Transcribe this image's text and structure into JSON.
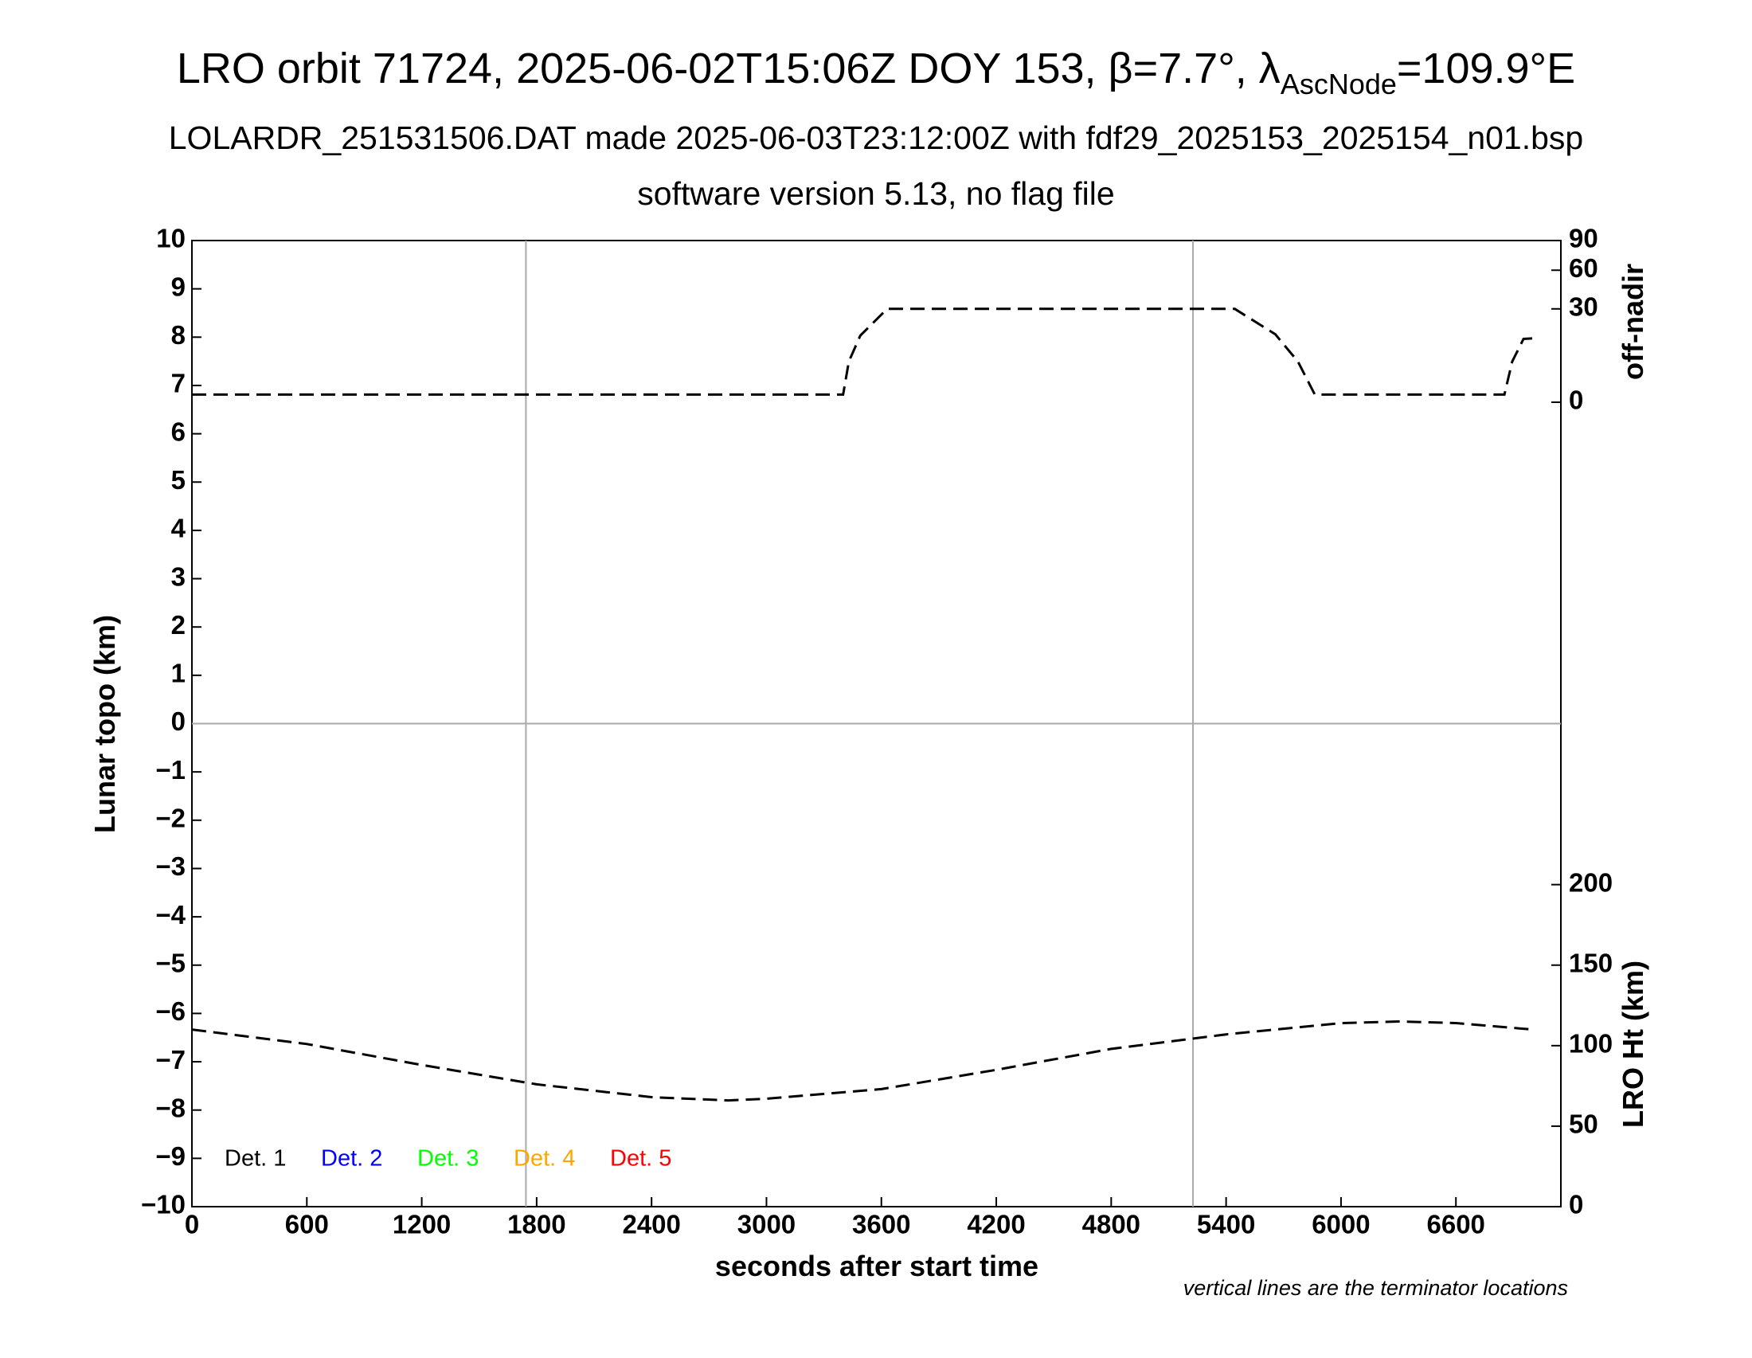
{
  "chart_data": {
    "type": "line",
    "title": {
      "main": "LRO orbit 71724, 2025-06-02T15:06Z DOY 153, β=7.7°, λ",
      "sub": "AscNode",
      "end": "=109.9°E"
    },
    "subtitle": "LOLARDR_251531506.DAT made 2025-06-03T23:12:00Z with fdf29_2025153_2025154_n01.bsp",
    "subtitle2": "software version 5.13, no flag file",
    "xlabel": "seconds after start time",
    "ylabel": "Lunar topo (km)",
    "y2label": "off-nadir",
    "y3label": "LRO Ht (km)",
    "note": "vertical lines are the terminator locations",
    "xlim": [
      0,
      7148
    ],
    "xticks": [
      0,
      600,
      1200,
      1800,
      2400,
      3000,
      3600,
      4200,
      4800,
      5400,
      6000,
      6600
    ],
    "ylim": [
      -10,
      10
    ],
    "yticks": [
      {
        "value": -10,
        "label": "−10"
      },
      {
        "value": -9,
        "label": "−9"
      },
      {
        "value": -8,
        "label": "−8"
      },
      {
        "value": -7,
        "label": "−7"
      },
      {
        "value": -6,
        "label": "−6"
      },
      {
        "value": -5,
        "label": "−5"
      },
      {
        "value": -4,
        "label": "−4"
      },
      {
        "value": -3,
        "label": "−3"
      },
      {
        "value": -2,
        "label": "−2"
      },
      {
        "value": -1,
        "label": "−1"
      },
      0,
      1,
      2,
      3,
      4,
      5,
      6,
      7,
      8,
      9,
      10
    ],
    "y2lim": [
      0,
      90
    ],
    "y2scale": "sqrt",
    "y2ticks": [
      0,
      30,
      60,
      90
    ],
    "y3lim": [
      0,
      600
    ],
    "y3ticks": [
      0,
      50,
      100,
      150,
      200
    ],
    "terminators": [
      1744,
      5227
    ],
    "hlines": [
      0
    ],
    "legend": [
      {
        "name": "Det. 1",
        "color": "#000000"
      },
      {
        "name": "Det. 2",
        "color": "#0000ff"
      },
      {
        "name": "Det. 3",
        "color": "#00ff00"
      },
      {
        "name": "Det. 4",
        "color": "#ffa500"
      },
      {
        "name": "Det. 5",
        "color": "#ff0000"
      }
    ],
    "series": [
      {
        "axis": "y2",
        "color": "#000000",
        "x": [
          0,
          3400,
          3430,
          3490,
          3630,
          5445,
          5657,
          5775,
          5863,
          6853,
          6894,
          6953,
          7000
        ],
        "values": [
          0.2,
          0.2,
          5.7,
          15.3,
          30,
          30,
          15.9,
          5.7,
          0.2,
          0.2,
          5.7,
          13.8,
          14
        ]
      },
      {
        "axis": "y3",
        "color": "#000000",
        "x": [
          0,
          600,
          1200,
          1800,
          2400,
          2800,
          3000,
          3600,
          4200,
          4800,
          5400,
          6000,
          6300,
          6600,
          7000
        ],
        "values": [
          110,
          101,
          88,
          76,
          68,
          66,
          67,
          73,
          85,
          98,
          107,
          114,
          115,
          114,
          110
        ]
      }
    ]
  }
}
